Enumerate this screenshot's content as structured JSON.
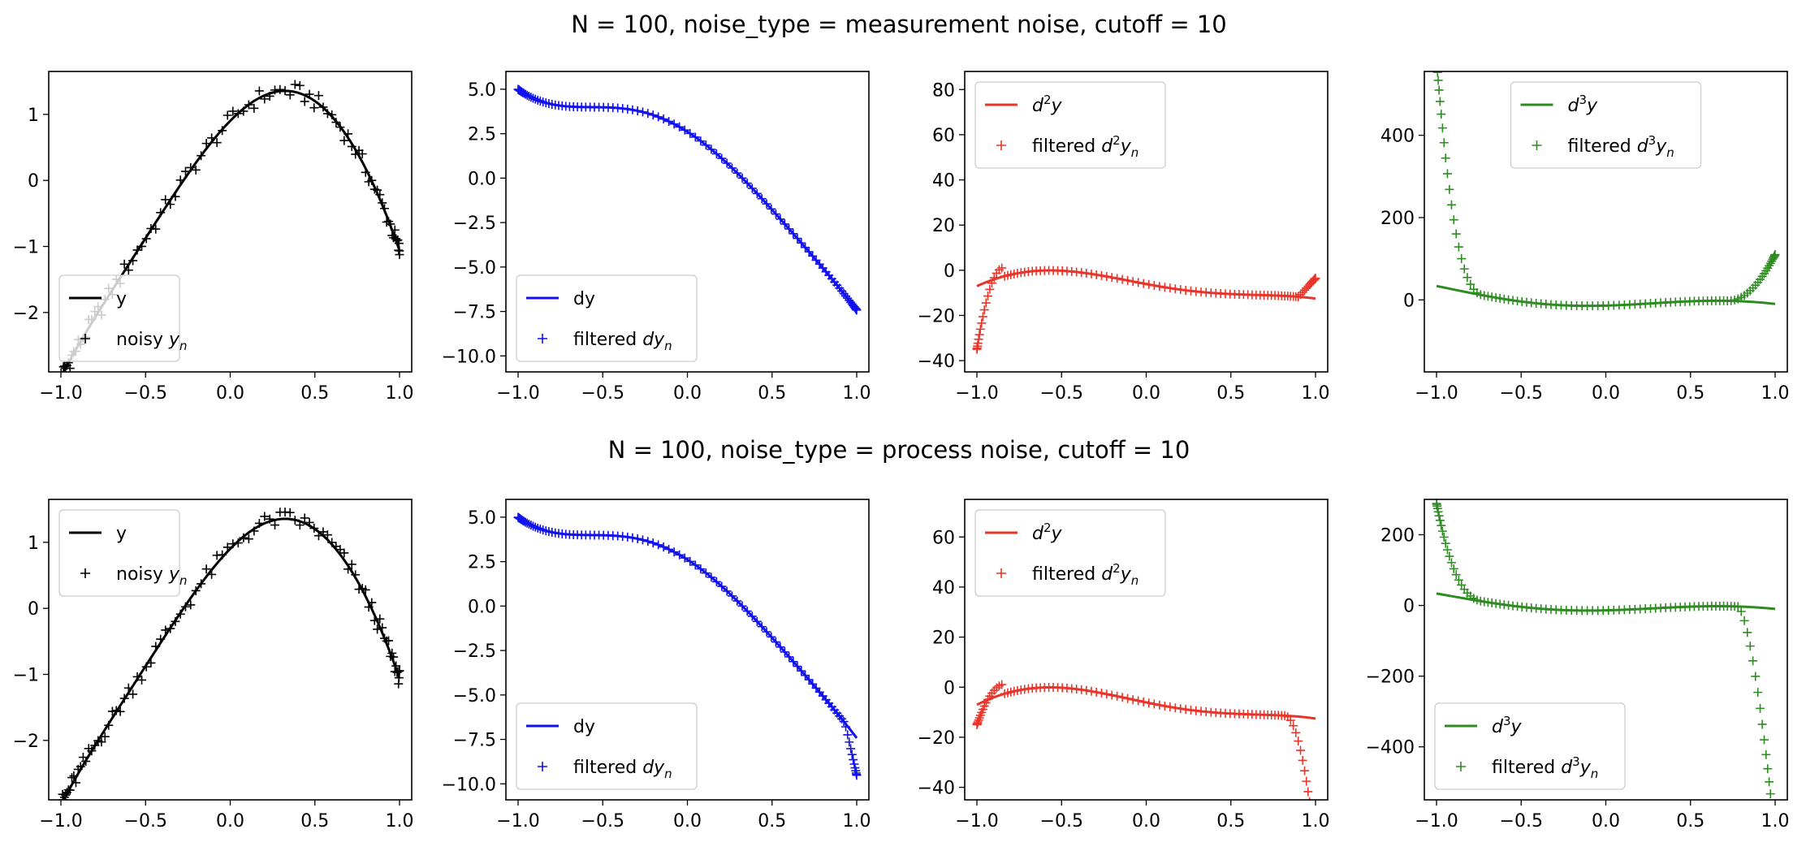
{
  "titles": [
    "N = 100, noise_type = measurement noise, cutoff = 10",
    "N = 100, noise_type = process noise, cutoff = 10"
  ],
  "colors": {
    "y": "#000000",
    "dy": "#1010f0",
    "d2y": "#e8352a",
    "d3y": "#2e8b22"
  },
  "chart_data": [
    {
      "type": "line",
      "row": 0,
      "col": 0,
      "func": "y",
      "noise": "measurement",
      "xlim": [
        -1.0,
        1.0
      ],
      "ylim": [
        -2.9,
        1.65
      ],
      "xticks": [
        -1.0,
        -0.5,
        0.0,
        0.5,
        1.0
      ],
      "xtick_labels": [
        "−1.0",
        "−0.5",
        "0.0",
        "0.5",
        "1.0"
      ],
      "yticks": [
        -2,
        -1,
        0,
        1
      ],
      "ytick_labels": [
        "−2",
        "−1",
        "0",
        "1"
      ],
      "legend": {
        "loc": "lower-left",
        "line": "y",
        "marker_prefix": "noisy ",
        "marker_sym": "y"
      }
    },
    {
      "type": "line",
      "row": 0,
      "col": 1,
      "func": "dy",
      "noise": "measurement",
      "xlim": [
        -1.0,
        1.0
      ],
      "ylim": [
        -10.9,
        6.0
      ],
      "xticks": [
        -1.0,
        -0.5,
        0.0,
        0.5,
        1.0
      ],
      "xtick_labels": [
        "−1.0",
        "−0.5",
        "0.0",
        "0.5",
        "1.0"
      ],
      "yticks": [
        -10.0,
        -7.5,
        -5.0,
        -2.5,
        0.0,
        2.5,
        5.0
      ],
      "ytick_labels": [
        "−10.0",
        "−7.5",
        "−5.0",
        "−2.5",
        "0.0",
        "2.5",
        "5.0"
      ],
      "legend": {
        "loc": "lower-left",
        "line": "dy",
        "marker_prefix": "filtered ",
        "marker_sym": "dy"
      }
    },
    {
      "type": "line",
      "row": 0,
      "col": 2,
      "func": "d2y",
      "noise": "measurement",
      "xlim": [
        -1.0,
        1.0
      ],
      "ylim": [
        -45.0,
        88.0
      ],
      "xticks": [
        -1.0,
        -0.5,
        0.0,
        0.5,
        1.0
      ],
      "xtick_labels": [
        "−1.0",
        "−0.5",
        "0.0",
        "0.5",
        "1.0"
      ],
      "yticks": [
        -40,
        -20,
        0,
        20,
        40,
        60,
        80
      ],
      "ytick_labels": [
        "−40",
        "−20",
        "0",
        "20",
        "40",
        "60",
        "80"
      ],
      "legend": {
        "loc": "upper-left",
        "line": "d2y",
        "marker_prefix": "filtered ",
        "marker_sym": "d2y"
      }
    },
    {
      "type": "line",
      "row": 0,
      "col": 3,
      "func": "d3y",
      "noise": "measurement",
      "xlim": [
        -1.0,
        1.0
      ],
      "ylim": [
        -175.0,
        555.0
      ],
      "xticks": [
        -1.0,
        -0.5,
        0.0,
        0.5,
        1.0
      ],
      "xtick_labels": [
        "−1.0",
        "−0.5",
        "0.0",
        "0.5",
        "1.0"
      ],
      "yticks": [
        0,
        200,
        400
      ],
      "ytick_labels": [
        "0",
        "200",
        "400"
      ],
      "legend": {
        "loc": "upper-center",
        "line": "d3y",
        "marker_prefix": "filtered ",
        "marker_sym": "d3y"
      }
    },
    {
      "type": "line",
      "row": 1,
      "col": 0,
      "func": "y",
      "noise": "process",
      "xlim": [
        -1.0,
        1.0
      ],
      "ylim": [
        -2.9,
        1.65
      ],
      "xticks": [
        -1.0,
        -0.5,
        0.0,
        0.5,
        1.0
      ],
      "xtick_labels": [
        "−1.0",
        "−0.5",
        "0.0",
        "0.5",
        "1.0"
      ],
      "yticks": [
        -2,
        -1,
        0,
        1
      ],
      "ytick_labels": [
        "−2",
        "−1",
        "0",
        "1"
      ],
      "legend": {
        "loc": "upper-left",
        "line": "y",
        "marker_prefix": "noisy ",
        "marker_sym": "y"
      }
    },
    {
      "type": "line",
      "row": 1,
      "col": 1,
      "func": "dy",
      "noise": "process",
      "xlim": [
        -1.0,
        1.0
      ],
      "ylim": [
        -10.9,
        6.0
      ],
      "xticks": [
        -1.0,
        -0.5,
        0.0,
        0.5,
        1.0
      ],
      "xtick_labels": [
        "−1.0",
        "−0.5",
        "0.0",
        "0.5",
        "1.0"
      ],
      "yticks": [
        -10.0,
        -7.5,
        -5.0,
        -2.5,
        0.0,
        2.5,
        5.0
      ],
      "ytick_labels": [
        "−10.0",
        "−7.5",
        "−5.0",
        "−2.5",
        "0.0",
        "2.5",
        "5.0"
      ],
      "legend": {
        "loc": "lower-left",
        "line": "dy",
        "marker_prefix": "filtered ",
        "marker_sym": "dy"
      }
    },
    {
      "type": "line",
      "row": 1,
      "col": 2,
      "func": "d2y",
      "noise": "process",
      "xlim": [
        -1.0,
        1.0
      ],
      "ylim": [
        -45.0,
        75.0
      ],
      "xticks": [
        -1.0,
        -0.5,
        0.0,
        0.5,
        1.0
      ],
      "xtick_labels": [
        "−1.0",
        "−0.5",
        "0.0",
        "0.5",
        "1.0"
      ],
      "yticks": [
        -40,
        -20,
        0,
        20,
        40,
        60
      ],
      "ytick_labels": [
        "−40",
        "−20",
        "0",
        "20",
        "40",
        "60"
      ],
      "legend": {
        "loc": "upper-left",
        "line": "d2y",
        "marker_prefix": "filtered ",
        "marker_sym": "d2y"
      }
    },
    {
      "type": "line",
      "row": 1,
      "col": 3,
      "func": "d3y",
      "noise": "process",
      "xlim": [
        -1.0,
        1.0
      ],
      "ylim": [
        -550.0,
        300.0
      ],
      "xticks": [
        -1.0,
        -0.5,
        0.0,
        0.5,
        1.0
      ],
      "xtick_labels": [
        "−1.0",
        "−0.5",
        "0.0",
        "0.5",
        "1.0"
      ],
      "yticks": [
        -400,
        -200,
        0,
        200
      ],
      "ytick_labels": [
        "−400",
        "−200",
        "0",
        "200"
      ],
      "legend": {
        "loc": "lower-left",
        "line": "d3y",
        "marker_prefix": "filtered ",
        "marker_sym": "d3y"
      }
    }
  ]
}
